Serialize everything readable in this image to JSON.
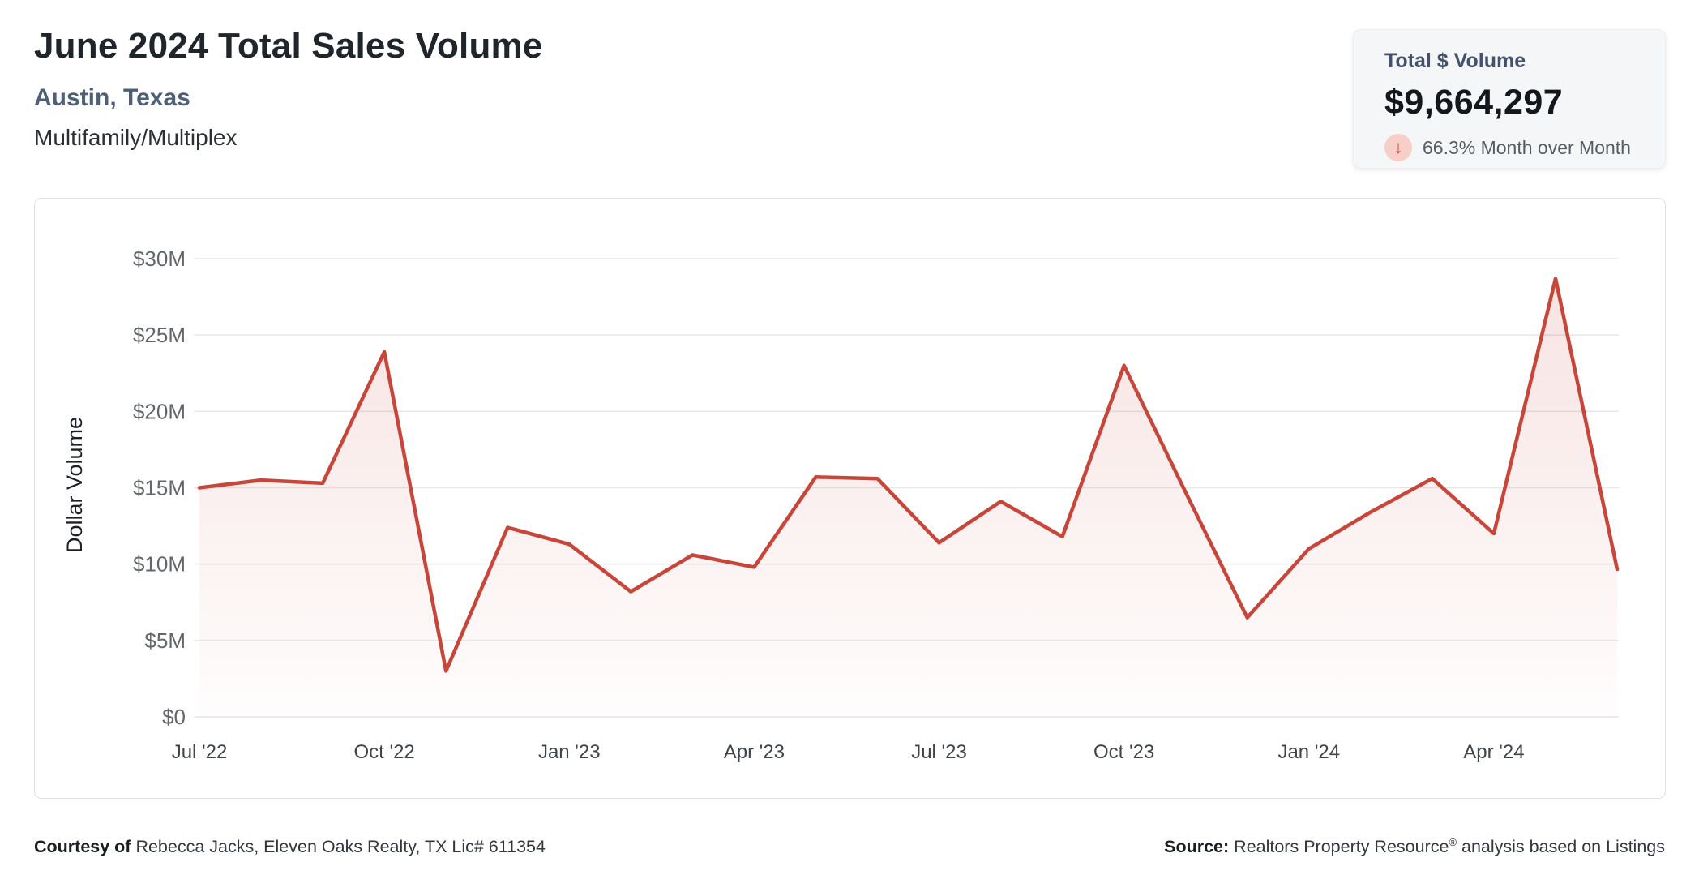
{
  "header": {
    "title": "June 2024 Total Sales Volume",
    "subtitle": "Austin, Texas",
    "property_type": "Multifamily/Multiplex"
  },
  "stat_card": {
    "label": "Total $ Volume",
    "value": "$9,664,297",
    "mom_text": "66.3% Month over Month",
    "direction_icon": "arrow-down",
    "arrow_glyph": "↓",
    "badge_bg": "#f7cfc8",
    "arrow_color": "#cb4335"
  },
  "footer": {
    "courtesy_label": "Courtesy of",
    "courtesy_text": " Rebecca Jacks, Eleven Oaks Realty, TX Lic# 611354",
    "source_label": "Source:",
    "source_name": " Realtors Property Resource",
    "source_reg_mark": "®",
    "source_suffix": " analysis based on Listings"
  },
  "chart_data": {
    "type": "area",
    "title": "June 2024 Total Sales Volume",
    "xlabel": "",
    "ylabel": "Dollar Volume",
    "ylim_millions": [
      0,
      30
    ],
    "grid": true,
    "legend": false,
    "line_color": "#c8453a",
    "grid_color": "#e5e6e8",
    "fill_top_color": "rgba(200,69,58,0.15)",
    "fill_bottom_color": "rgba(200,69,58,0.01)",
    "y_tick_label_color": "#63676c",
    "x_tick_label_color": "#3f434a",
    "categories": [
      "Jul '22",
      "Aug '22",
      "Sep '22",
      "Oct '22",
      "Nov '22",
      "Dec '22",
      "Jan '23",
      "Feb '23",
      "Mar '23",
      "Apr '23",
      "May '23",
      "Jun '23",
      "Jul '23",
      "Aug '23",
      "Sep '23",
      "Oct '23",
      "Nov '23",
      "Dec '23",
      "Jan '24",
      "Feb '24",
      "Mar '24",
      "Apr '24",
      "May '24",
      "Jun '24"
    ],
    "values_usd_millions": [
      15.0,
      15.5,
      15.3,
      23.9,
      3.0,
      12.4,
      11.3,
      8.2,
      10.6,
      9.8,
      15.7,
      15.6,
      11.4,
      14.1,
      11.8,
      23.0,
      14.7,
      6.5,
      11.0,
      13.4,
      15.6,
      12.0,
      28.7,
      9.66
    ],
    "x_tick_labels": [
      "Jul '22",
      "Oct '22",
      "Jan '23",
      "Apr '23",
      "Jul '23",
      "Oct '23",
      "Jan '24",
      "Apr '24"
    ],
    "y_tick_labels": [
      "$0",
      "$5M",
      "$10M",
      "$15M",
      "$20M",
      "$25M",
      "$30M"
    ],
    "y_tick_values_millions": [
      0,
      5,
      10,
      15,
      20,
      25,
      30
    ]
  }
}
